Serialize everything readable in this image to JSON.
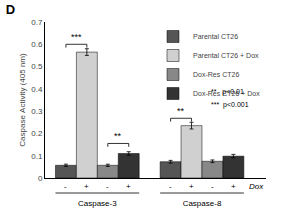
{
  "chart_data": {
    "type": "bar",
    "title": "D",
    "ylabel": "Caspase Activity (405 nm)",
    "categories": [
      "Caspase-3",
      "Caspase-8"
    ],
    "series": [
      {
        "name": "Parental CT26",
        "color": "#555555",
        "values": [
          0.057,
          0.073
        ],
        "errors": [
          0.005,
          0.006
        ],
        "dox_labels": [
          "-",
          "-"
        ]
      },
      {
        "name": "Parental CT26 + Dox",
        "color": "#d0d0d0",
        "values": [
          0.565,
          0.235
        ],
        "errors": [
          0.015,
          0.015
        ],
        "dox_labels": [
          "+",
          "+"
        ]
      },
      {
        "name": "Dox-Res CT26",
        "color": "#888888",
        "values": [
          0.057,
          0.075
        ],
        "errors": [
          0.005,
          0.006
        ],
        "dox_labels": [
          "-",
          "-"
        ]
      },
      {
        "name": "Dox-Res CT26 + Dox",
        "color": "#333333",
        "values": [
          0.11,
          0.098
        ],
        "errors": [
          0.008,
          0.008
        ],
        "dox_labels": [
          "+",
          "+"
        ]
      }
    ],
    "ylim": [
      0,
      0.7
    ],
    "yticks": [
      0,
      0.1,
      0.2,
      0.3,
      0.4,
      0.5,
      0.6,
      0.7
    ],
    "grid": false,
    "legend": "upper right",
    "dox_label": "Dox",
    "brackets": [
      {
        "category": "Caspase-3",
        "from": "Parental CT26",
        "to": "Parental CT26 + Dox",
        "y": 0.6,
        "label": "***"
      },
      {
        "category": "Caspase-3",
        "from": "Dox-Res CT26",
        "to": "Dox-Res CT26 + Dox",
        "y": 0.155,
        "label": "**"
      },
      {
        "category": "Caspase-8",
        "from": "Parental CT26",
        "to": "Parental CT26 + Dox",
        "y": 0.268,
        "label": "**"
      }
    ],
    "annotations": [
      "**   p<0.01",
      "***  p<0.001"
    ]
  }
}
